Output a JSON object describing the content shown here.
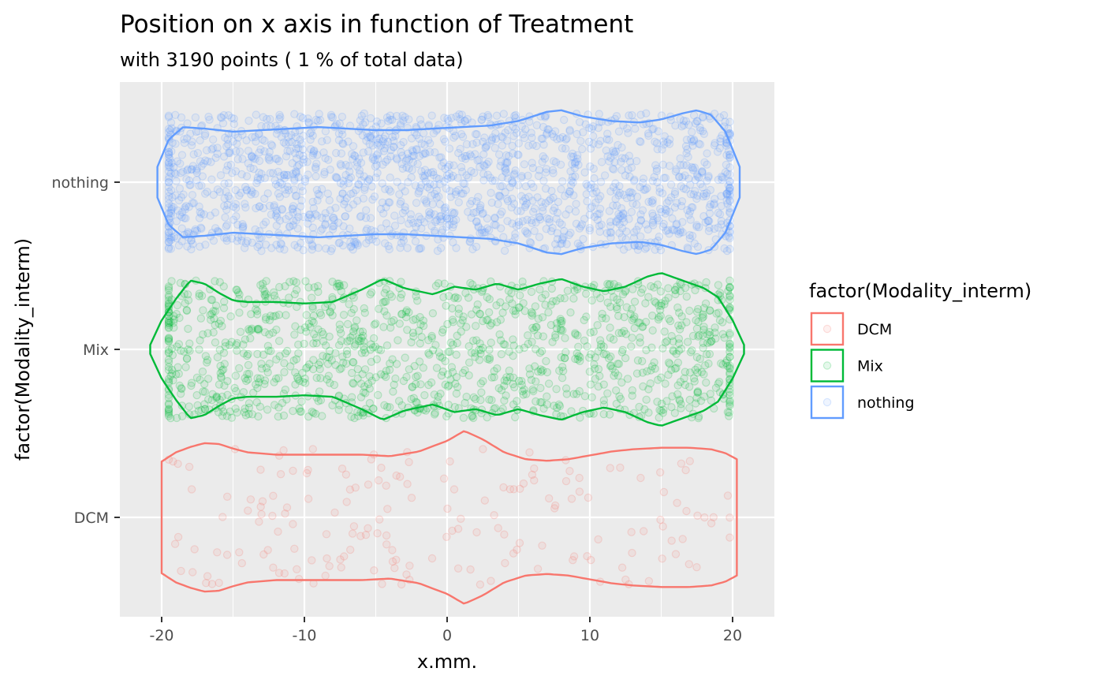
{
  "chart_data": {
    "type": "violin",
    "title": "Position on x axis in function of Treatment",
    "subtitle": "with 3190 points ( 1 % of total data)",
    "xlabel": "x.mm.",
    "ylabel": "factor(Modality_interm)",
    "xlim": [
      -23,
      23
    ],
    "x_ticks": [
      -20,
      -10,
      0,
      10,
      20
    ],
    "x_tick_labels": [
      "-20",
      "-10",
      "0",
      "10",
      "20"
    ],
    "categories": [
      "DCM",
      "Mix",
      "nothing"
    ],
    "grid": true,
    "legend": {
      "title": "factor(Modality_interm)",
      "position": "right",
      "entries": [
        "DCM",
        "Mix",
        "nothing"
      ]
    },
    "series": [
      {
        "name": "DCM",
        "color": "#F8766D",
        "x_range": [
          -20,
          20.3
        ],
        "point_count": 180,
        "density_profile": [
          [
            -20.0,
            0.73
          ],
          [
            -19.0,
            0.85
          ],
          [
            -18.0,
            0.92
          ],
          [
            -17.0,
            0.97
          ],
          [
            -16.0,
            0.96
          ],
          [
            -15.0,
            0.9
          ],
          [
            -14.0,
            0.85
          ],
          [
            -12.0,
            0.82
          ],
          [
            -10.0,
            0.82
          ],
          [
            -8.0,
            0.82
          ],
          [
            -6.0,
            0.82
          ],
          [
            -4.0,
            0.8
          ],
          [
            -2.0,
            0.86
          ],
          [
            0.0,
            1.0
          ],
          [
            1.2,
            1.13
          ],
          [
            2.5,
            1.02
          ],
          [
            4.0,
            0.85
          ],
          [
            5.5,
            0.76
          ],
          [
            7.0,
            0.74
          ],
          [
            8.5,
            0.76
          ],
          [
            10.0,
            0.81
          ],
          [
            11.5,
            0.86
          ],
          [
            13.0,
            0.89
          ],
          [
            15.0,
            0.91
          ],
          [
            17.0,
            0.91
          ],
          [
            18.5,
            0.89
          ],
          [
            19.5,
            0.84
          ],
          [
            20.3,
            0.76
          ]
        ]
      },
      {
        "name": "Mix",
        "color": "#00BA38",
        "x_range": [
          -20.8,
          20.8
        ],
        "point_count": 1290,
        "density_profile": [
          [
            -20.8,
            0.06
          ],
          [
            -20.0,
            0.38
          ],
          [
            -19.0,
            0.66
          ],
          [
            -18.0,
            0.9
          ],
          [
            -17.0,
            0.86
          ],
          [
            -16.0,
            0.74
          ],
          [
            -15.0,
            0.64
          ],
          [
            -14.0,
            0.62
          ],
          [
            -12.0,
            0.62
          ],
          [
            -10.0,
            0.6
          ],
          [
            -8.0,
            0.62
          ],
          [
            -6.0,
            0.78
          ],
          [
            -4.5,
            0.92
          ],
          [
            -3.0,
            0.8
          ],
          [
            -1.0,
            0.72
          ],
          [
            0.5,
            0.82
          ],
          [
            2.0,
            0.78
          ],
          [
            3.5,
            0.86
          ],
          [
            5.0,
            0.78
          ],
          [
            6.5,
            0.86
          ],
          [
            8.0,
            0.92
          ],
          [
            9.5,
            0.82
          ],
          [
            11.0,
            0.76
          ],
          [
            12.5,
            0.82
          ],
          [
            14.0,
            0.95
          ],
          [
            15.0,
            1.0
          ],
          [
            16.5,
            0.9
          ],
          [
            18.0,
            0.8
          ],
          [
            19.0,
            0.68
          ],
          [
            20.0,
            0.38
          ],
          [
            20.8,
            0.06
          ]
        ]
      },
      {
        "name": "nothing",
        "color": "#619CFF",
        "x_range": [
          -20.3,
          20.5
        ],
        "point_count": 1720,
        "density_profile": [
          [
            -20.3,
            0.2
          ],
          [
            -19.5,
            0.56
          ],
          [
            -18.5,
            0.72
          ],
          [
            -17.0,
            0.7
          ],
          [
            -15.0,
            0.66
          ],
          [
            -13.0,
            0.68
          ],
          [
            -11.0,
            0.7
          ],
          [
            -9.0,
            0.72
          ],
          [
            -7.0,
            0.7
          ],
          [
            -5.0,
            0.68
          ],
          [
            -3.0,
            0.68
          ],
          [
            -1.0,
            0.7
          ],
          [
            1.0,
            0.72
          ],
          [
            3.0,
            0.74
          ],
          [
            5.0,
            0.8
          ],
          [
            7.0,
            0.92
          ],
          [
            8.0,
            0.94
          ],
          [
            9.5,
            0.86
          ],
          [
            11.5,
            0.8
          ],
          [
            13.5,
            0.78
          ],
          [
            15.0,
            0.82
          ],
          [
            16.5,
            0.9
          ],
          [
            17.5,
            0.94
          ],
          [
            18.5,
            0.88
          ],
          [
            19.5,
            0.66
          ],
          [
            20.5,
            0.2
          ]
        ]
      }
    ]
  }
}
